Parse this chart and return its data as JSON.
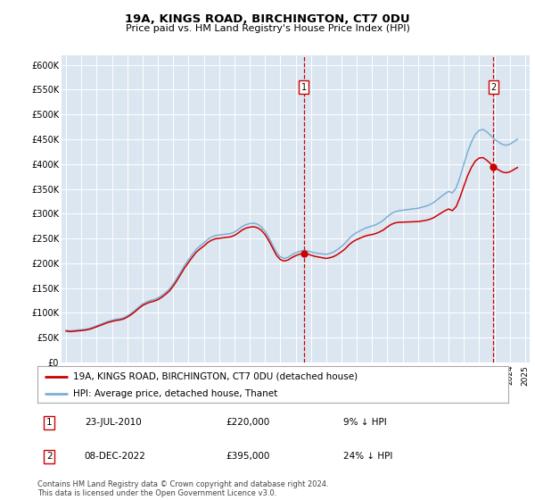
{
  "title": "19A, KINGS ROAD, BIRCHINGTON, CT7 0DU",
  "subtitle": "Price paid vs. HM Land Registry's House Price Index (HPI)",
  "background_color": "#ffffff",
  "plot_bg_color": "#dce6f1",
  "hpi_color": "#7bafd4",
  "price_color": "#cc0000",
  "marker_color": "#cc0000",
  "ylim": [
    0,
    620000
  ],
  "yticks": [
    0,
    50000,
    100000,
    150000,
    200000,
    250000,
    300000,
    350000,
    400000,
    450000,
    500000,
    550000,
    600000
  ],
  "ytick_labels": [
    "£0",
    "£50K",
    "£100K",
    "£150K",
    "£200K",
    "£250K",
    "£300K",
    "£350K",
    "£400K",
    "£450K",
    "£500K",
    "£550K",
    "£600K"
  ],
  "xlim_start": 1994.7,
  "xlim_end": 2025.3,
  "transaction1_x": 2010.55,
  "transaction1_y": 220000,
  "transaction1_label": "1",
  "transaction1_date": "23-JUL-2010",
  "transaction1_price": "£220,000",
  "transaction1_hpi": "9% ↓ HPI",
  "transaction2_x": 2022.93,
  "transaction2_y": 395000,
  "transaction2_label": "2",
  "transaction2_date": "08-DEC-2022",
  "transaction2_price": "£395,000",
  "transaction2_hpi": "24% ↓ HPI",
  "legend_line1": "19A, KINGS ROAD, BIRCHINGTON, CT7 0DU (detached house)",
  "legend_line2": "HPI: Average price, detached house, Thanet",
  "footer": "Contains HM Land Registry data © Crown copyright and database right 2024.\nThis data is licensed under the Open Government Licence v3.0.",
  "hpi_data_x": [
    1995.0,
    1995.25,
    1995.5,
    1995.75,
    1996.0,
    1996.25,
    1996.5,
    1996.75,
    1997.0,
    1997.25,
    1997.5,
    1997.75,
    1998.0,
    1998.25,
    1998.5,
    1998.75,
    1999.0,
    1999.25,
    1999.5,
    1999.75,
    2000.0,
    2000.25,
    2000.5,
    2000.75,
    2001.0,
    2001.25,
    2001.5,
    2001.75,
    2002.0,
    2002.25,
    2002.5,
    2002.75,
    2003.0,
    2003.25,
    2003.5,
    2003.75,
    2004.0,
    2004.25,
    2004.5,
    2004.75,
    2005.0,
    2005.25,
    2005.5,
    2005.75,
    2006.0,
    2006.25,
    2006.5,
    2006.75,
    2007.0,
    2007.25,
    2007.5,
    2007.75,
    2008.0,
    2008.25,
    2008.5,
    2008.75,
    2009.0,
    2009.25,
    2009.5,
    2009.75,
    2010.0,
    2010.25,
    2010.5,
    2010.75,
    2011.0,
    2011.25,
    2011.5,
    2011.75,
    2012.0,
    2012.25,
    2012.5,
    2012.75,
    2013.0,
    2013.25,
    2013.5,
    2013.75,
    2014.0,
    2014.25,
    2014.5,
    2014.75,
    2015.0,
    2015.25,
    2015.5,
    2015.75,
    2016.0,
    2016.25,
    2016.5,
    2016.75,
    2017.0,
    2017.25,
    2017.5,
    2017.75,
    2018.0,
    2018.25,
    2018.5,
    2018.75,
    2019.0,
    2019.25,
    2019.5,
    2019.75,
    2020.0,
    2020.25,
    2020.5,
    2020.75,
    2021.0,
    2021.25,
    2021.5,
    2021.75,
    2022.0,
    2022.25,
    2022.5,
    2022.75,
    2023.0,
    2023.25,
    2023.5,
    2023.75,
    2024.0,
    2024.25,
    2024.5
  ],
  "hpi_data_y": [
    65000,
    64000,
    64500,
    65500,
    66000,
    67000,
    68500,
    71000,
    74000,
    77000,
    80000,
    83000,
    85000,
    87000,
    88000,
    90000,
    94000,
    99000,
    105000,
    112000,
    118000,
    122000,
    125000,
    127000,
    130000,
    135000,
    141000,
    148000,
    158000,
    170000,
    183000,
    196000,
    207000,
    218000,
    228000,
    235000,
    241000,
    248000,
    253000,
    256000,
    257000,
    258000,
    259000,
    260000,
    263000,
    268000,
    274000,
    278000,
    280000,
    281000,
    279000,
    274000,
    265000,
    252000,
    237000,
    222000,
    213000,
    210000,
    212000,
    217000,
    221000,
    224000,
    226000,
    225000,
    223000,
    221000,
    220000,
    219000,
    218000,
    220000,
    223000,
    228000,
    234000,
    241000,
    250000,
    257000,
    262000,
    266000,
    270000,
    273000,
    275000,
    278000,
    282000,
    287000,
    294000,
    300000,
    304000,
    306000,
    307000,
    308000,
    309000,
    310000,
    311000,
    313000,
    315000,
    318000,
    322000,
    328000,
    334000,
    340000,
    345000,
    342000,
    352000,
    374000,
    400000,
    425000,
    445000,
    460000,
    468000,
    470000,
    465000,
    458000,
    450000,
    445000,
    440000,
    438000,
    440000,
    445000,
    450000
  ],
  "sale1_x": 2010.55,
  "sale1_y": 220000,
  "sale2_x": 2022.93,
  "sale2_y": 395000
}
